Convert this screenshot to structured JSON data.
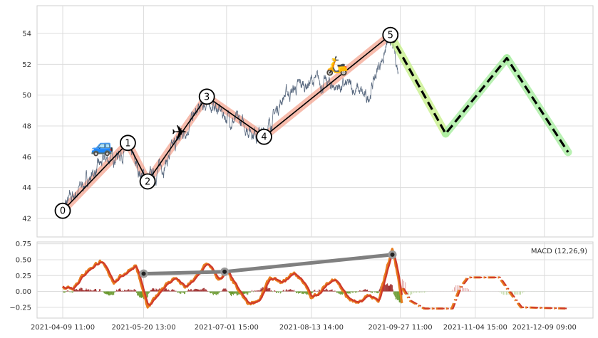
{
  "chart_data": [
    {
      "type": "line",
      "panel": "price",
      "title": "",
      "xlabel": "",
      "ylabel": "",
      "ylim": [
        40.8,
        55.8
      ],
      "yticks": [
        42,
        44,
        46,
        48,
        50,
        52,
        54
      ],
      "grid": true,
      "legend": "none",
      "colors": {
        "price": "#5a6a80",
        "wave_band": "#f4a08a",
        "wave_line": "#000000",
        "forecast_band_up": "#c8f08c",
        "forecast_band_down": "#a8eea0",
        "forecast_line": "#000000"
      },
      "wave_points": [
        {
          "label": "0",
          "x": "2021-04-09",
          "y": 42.5
        },
        {
          "label": "1",
          "x": "2021-05-12",
          "y": 46.9
        },
        {
          "label": "2",
          "x": "2021-05-22",
          "y": 44.4
        },
        {
          "label": "3",
          "x": "2021-06-21",
          "y": 49.9
        },
        {
          "label": "4",
          "x": "2021-07-20",
          "y": 47.3
        },
        {
          "label": "5",
          "x": "2021-09-22",
          "y": 53.9
        }
      ],
      "forecast_points": [
        {
          "x": "2021-09-22",
          "y": 53.9
        },
        {
          "x": "2021-10-20",
          "y": 47.5
        },
        {
          "x": "2021-11-20",
          "y": 52.4
        },
        {
          "x": "2021-12-21",
          "y": 46.3
        }
      ],
      "price_anchors": [
        {
          "x": "2021-04-09",
          "y": 42.6
        },
        {
          "x": "2021-04-20",
          "y": 44.3
        },
        {
          "x": "2021-05-01",
          "y": 45.8
        },
        {
          "x": "2021-05-12",
          "y": 46.5
        },
        {
          "x": "2021-05-17",
          "y": 45.2
        },
        {
          "x": "2021-05-22",
          "y": 44.4
        },
        {
          "x": "2021-06-01",
          "y": 45.8
        },
        {
          "x": "2021-06-10",
          "y": 47.8
        },
        {
          "x": "2021-06-21",
          "y": 49.6
        },
        {
          "x": "2021-07-01",
          "y": 48.6
        },
        {
          "x": "2021-07-10",
          "y": 48.0
        },
        {
          "x": "2021-07-20",
          "y": 47.4
        },
        {
          "x": "2021-07-30",
          "y": 50.0
        },
        {
          "x": "2021-08-13",
          "y": 50.9
        },
        {
          "x": "2021-08-25",
          "y": 50.6
        },
        {
          "x": "2021-09-05",
          "y": 50.4
        },
        {
          "x": "2021-09-10",
          "y": 49.6
        },
        {
          "x": "2021-09-17",
          "y": 52.2
        },
        {
          "x": "2021-09-22",
          "y": 53.6
        },
        {
          "x": "2021-09-26",
          "y": 51.6
        }
      ],
      "icons": [
        "car-icon",
        "airplane-icon",
        "scooter-icon"
      ]
    },
    {
      "type": "line",
      "panel": "macd",
      "annotations": [
        "MACD (12,26,9)"
      ],
      "ylim": [
        -0.42,
        0.78
      ],
      "yticks": [
        -0.25,
        0.0,
        0.25,
        0.5,
        0.75
      ],
      "ytick_labels": [
        "−0.25",
        "0.00",
        "0.25",
        "0.50",
        "0.75"
      ],
      "xtick_labels": [
        "2021-04-09 11:00",
        "2021-05-20 13:00",
        "2021-07-01 15:00",
        "2021-08-13 14:00",
        "2021-09-27 11:00",
        "2021-11-04 15:00",
        "2021-12-09 09:00"
      ],
      "xticks": [
        "2021-04-09",
        "2021-05-20",
        "2021-07-01",
        "2021-08-13",
        "2021-09-27",
        "2021-11-04",
        "2021-12-09"
      ],
      "xlim": [
        "2021-04-09",
        "2021-12-21"
      ],
      "colors": {
        "macd": "#e87c1e",
        "signal": "#d03a2a",
        "hist_pos": "#a03030",
        "hist_neg": "#6a9a30",
        "divergence": "#808080"
      },
      "divergence_points": [
        {
          "x": "2021-05-20",
          "y": 0.28
        },
        {
          "x": "2021-06-30",
          "y": 0.31
        },
        {
          "x": "2021-09-23",
          "y": 0.58
        }
      ],
      "macd_anchors": [
        {
          "x": "2021-04-09",
          "y": 0.08
        },
        {
          "x": "2021-04-14",
          "y": 0.06
        },
        {
          "x": "2021-04-21",
          "y": 0.32
        },
        {
          "x": "2021-04-28",
          "y": 0.48
        },
        {
          "x": "2021-05-05",
          "y": 0.15
        },
        {
          "x": "2021-05-11",
          "y": 0.3
        },
        {
          "x": "2021-05-16",
          "y": 0.42
        },
        {
          "x": "2021-05-22",
          "y": -0.28
        },
        {
          "x": "2021-05-29",
          "y": 0.05
        },
        {
          "x": "2021-06-05",
          "y": 0.22
        },
        {
          "x": "2021-06-10",
          "y": 0.05
        },
        {
          "x": "2021-06-15",
          "y": 0.2
        },
        {
          "x": "2021-06-21",
          "y": 0.45
        },
        {
          "x": "2021-06-27",
          "y": 0.18
        },
        {
          "x": "2021-07-01",
          "y": 0.32
        },
        {
          "x": "2021-07-07",
          "y": 0.0
        },
        {
          "x": "2021-07-12",
          "y": -0.2
        },
        {
          "x": "2021-07-18",
          "y": -0.12
        },
        {
          "x": "2021-07-23",
          "y": 0.22
        },
        {
          "x": "2021-07-29",
          "y": 0.12
        },
        {
          "x": "2021-08-04",
          "y": 0.3
        },
        {
          "x": "2021-08-09",
          "y": 0.15
        },
        {
          "x": "2021-08-13",
          "y": -0.12
        },
        {
          "x": "2021-08-19",
          "y": 0.05
        },
        {
          "x": "2021-08-25",
          "y": 0.22
        },
        {
          "x": "2021-08-31",
          "y": -0.1
        },
        {
          "x": "2021-09-06",
          "y": -0.2
        },
        {
          "x": "2021-09-11",
          "y": -0.05
        },
        {
          "x": "2021-09-16",
          "y": -0.18
        },
        {
          "x": "2021-09-20",
          "y": 0.35
        },
        {
          "x": "2021-09-23",
          "y": 0.68
        },
        {
          "x": "2021-09-26",
          "y": 0.2
        },
        {
          "x": "2021-09-28",
          "y": -0.2
        }
      ],
      "forecast_anchors": [
        {
          "x": "2021-09-28",
          "y": 0.05
        },
        {
          "x": "2021-10-02",
          "y": -0.15
        },
        {
          "x": "2021-10-09",
          "y": -0.27
        },
        {
          "x": "2021-10-23",
          "y": -0.27
        },
        {
          "x": "2021-10-27",
          "y": 0.05
        },
        {
          "x": "2021-10-31",
          "y": 0.22
        },
        {
          "x": "2021-11-16",
          "y": 0.22
        },
        {
          "x": "2021-11-21",
          "y": 0.0
        },
        {
          "x": "2021-11-27",
          "y": -0.25
        },
        {
          "x": "2021-12-21",
          "y": -0.27
        }
      ]
    }
  ]
}
